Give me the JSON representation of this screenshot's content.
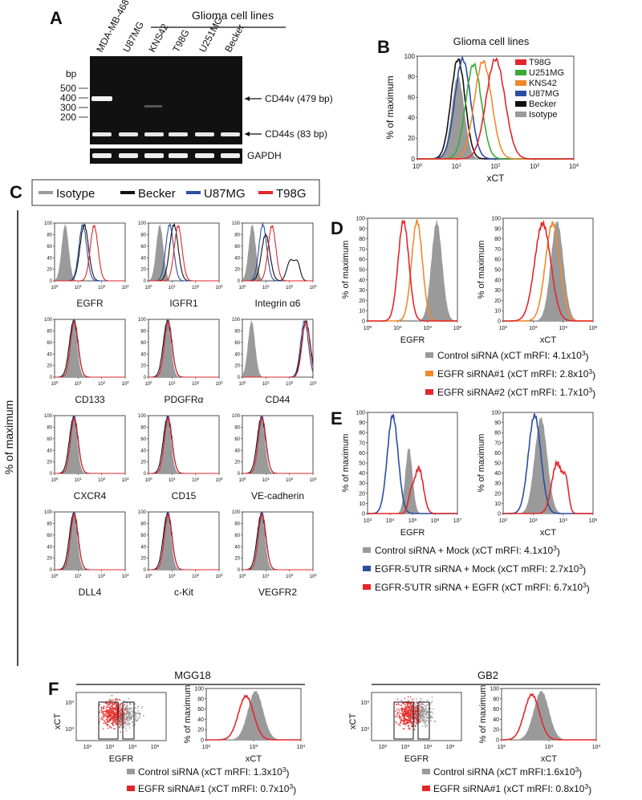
{
  "A": {
    "label": "A",
    "group_title": "Glioma cell lines",
    "lanes": [
      "MDA-MB-468",
      "U87MG",
      "KNS42",
      "T98G",
      "U251MG",
      "Becker"
    ],
    "bp": "bp",
    "ladder": [
      "500",
      "400",
      "300",
      "200"
    ],
    "bands": [
      "CD44v (479 bp)",
      "CD44s (83 bp)"
    ],
    "control": "GAPDH"
  },
  "B": {
    "label": "B",
    "title": "Glioma cell lines",
    "y_label": "% of maximum",
    "x_label": "xCT",
    "legend": [
      "T98G",
      "U251MG",
      "KNS42",
      "U87MG",
      "Becker",
      "Isotype"
    ]
  },
  "axes": {
    "pct20": [
      "0",
      "20",
      "40",
      "60",
      "80",
      "100"
    ],
    "pct10": [
      "0",
      "10",
      "20",
      "30",
      "40",
      "50",
      "60",
      "70",
      "80",
      "90",
      "100"
    ],
    "log0_4": [
      {
        "base": "10",
        "exp": "0"
      },
      {
        "base": "10",
        "exp": "1"
      },
      {
        "base": "10",
        "exp": "2"
      },
      {
        "base": "10",
        "exp": "3"
      },
      {
        "base": "10",
        "exp": "4"
      }
    ],
    "log0_3": [
      {
        "base": "10",
        "exp": "0"
      },
      {
        "base": "10",
        "exp": "1"
      },
      {
        "base": "10",
        "exp": "2"
      },
      {
        "base": "10",
        "exp": "3"
      }
    ],
    "log0_6": [
      {
        "base": "10",
        "exp": "0"
      },
      {
        "base": "10",
        "exp": "2"
      },
      {
        "base": "10",
        "exp": "4"
      },
      {
        "base": "10",
        "exp": "6"
      }
    ],
    "log2_5": [
      {
        "base": "10",
        "exp": "2"
      },
      {
        "base": "10",
        "exp": "3"
      },
      {
        "base": "10",
        "exp": "4"
      },
      {
        "base": "10",
        "exp": "5"
      }
    ],
    "log3_7": [
      {
        "base": "10",
        "exp": "3"
      },
      {
        "base": "10",
        "exp": "4"
      },
      {
        "base": "10",
        "exp": "5"
      },
      {
        "base": "10",
        "exp": "6"
      },
      {
        "base": "10",
        "exp": "7"
      }
    ],
    "log3_4": [
      {
        "base": "10",
        "exp": "3"
      },
      {
        "base": "10",
        "exp": "4"
      }
    ],
    "log2_4": [
      {
        "base": "10",
        "exp": "2"
      },
      {
        "base": "10",
        "exp": "3"
      },
      {
        "base": "10",
        "exp": "4"
      }
    ]
  },
  "C": {
    "label": "C",
    "legend": [
      "Isotype",
      "Becker",
      "U87MG",
      "T98G"
    ],
    "y_label": "% of maximum",
    "markers": [
      "EGFR",
      "IGFR1",
      "Integrin α6",
      "CD133",
      "PDGFRα",
      "CD44",
      "CXCR4",
      "CD15",
      "VE-cadherin",
      "DLL4",
      "c-Kit",
      "VEGFR2"
    ]
  },
  "D": {
    "label": "D",
    "y_label": "% of maximum",
    "x_labels": [
      "EGFR",
      "xCT"
    ],
    "legend": [
      {
        "text": "Control siRNA (xCT mRFI: 4.1x10",
        "exp": "3",
        "close": ")"
      },
      {
        "text": "EGFR siRNA#1 (xCT mRFI: 2.8x10",
        "exp": "3",
        "close": ")"
      },
      {
        "text": "EGFR siRNA#2 (xCT mRFI: 1.7x10",
        "exp": "3",
        "close": ")"
      }
    ]
  },
  "E": {
    "label": "E",
    "y_label": "% of maximum",
    "x_labels": [
      "EGFR",
      "xCT"
    ],
    "legend": [
      {
        "text": "Control siRNA + Mock (xCT mRFI: 4.1x10",
        "exp": "3",
        "close": ")"
      },
      {
        "text": "EGFR-5'UTR siRNA + Mock (xCT mRFI: 2.7x10",
        "exp": "3",
        "close": ")"
      },
      {
        "text": "EGFR-5'UTR siRNA + EGFR (xCT mRFI: 6.7x10",
        "exp": "3",
        "close": ")"
      }
    ]
  },
  "F": {
    "label": "F",
    "samples": [
      {
        "name": "MGG18",
        "y_label": "xCT",
        "x_label": "EGFR",
        "hist_y_label": "% of maximum",
        "hist_x_label": "xCT",
        "legend": [
          {
            "text": "Control siRNA (xCT mRFI: 1.3x10",
            "exp": "3",
            "close": ")"
          },
          {
            "text": "EGFR siRNA#1 (xCT mRFI: 0.7x10",
            "exp": "3",
            "close": ")"
          }
        ]
      },
      {
        "name": "GB2",
        "y_label": "xCT",
        "x_label": "EGFR",
        "hist_y_label": "% of maximum",
        "hist_x_label": "xCT",
        "legend": [
          {
            "text": "Control siRNA (xCT mRFI:1.6x10",
            "exp": "3",
            "close": ")"
          },
          {
            "text": "EGFR siRNA#1 (xCT mRFI: 0.8x10",
            "exp": "3",
            "close": ")"
          }
        ]
      }
    ]
  }
}
